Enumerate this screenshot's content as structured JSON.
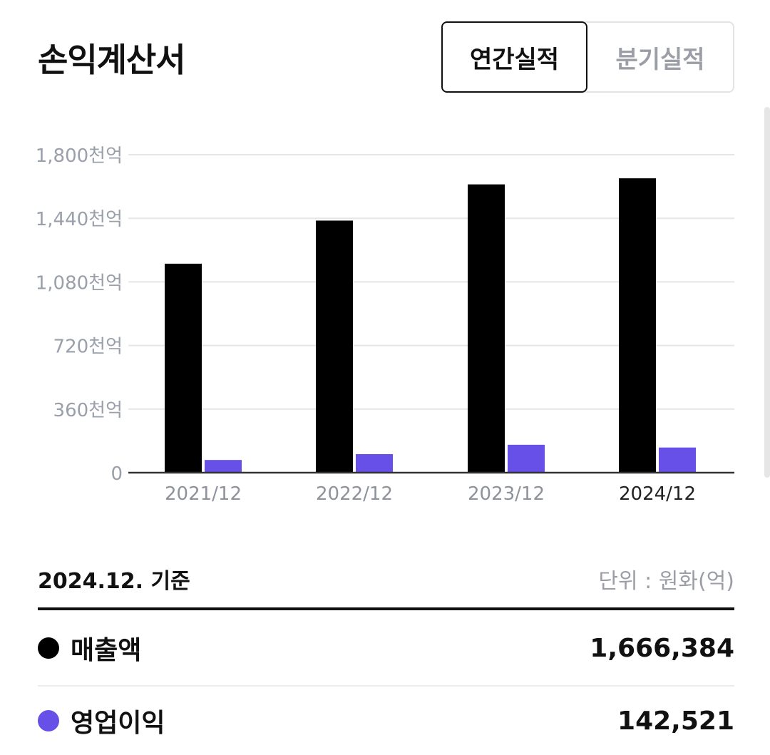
{
  "header": {
    "title": "손익계산서",
    "toggle": {
      "annual": "연간실적",
      "quarterly": "분기실적",
      "active": "annual"
    }
  },
  "chart_data": {
    "type": "bar",
    "categories": [
      "2021/12",
      "2022/12",
      "2023/12",
      "2024/12"
    ],
    "highlight_category": "2024/12",
    "series": [
      {
        "name": "매출액",
        "color": "#000000",
        "values": [
          1183000,
          1427000,
          1632000,
          1666384
        ]
      },
      {
        "name": "영업이익",
        "color": "#6650e8",
        "values": [
          72000,
          105000,
          158000,
          142521
        ]
      }
    ],
    "ylim": [
      0,
      1800000
    ],
    "yticks": [
      0,
      360000,
      720000,
      1080000,
      1440000,
      1800000
    ],
    "ytick_labels": [
      "0",
      "360천억",
      "720천억",
      "1,080천억",
      "1,440천억",
      "1,800천억"
    ],
    "grid": true,
    "xlabel": "",
    "ylabel": ""
  },
  "summary": {
    "as_of": "2024.12. 기준",
    "unit": "단위 : 원화(억)",
    "rows": [
      {
        "label": "매출액",
        "value": "1,666,384",
        "color": "#000000"
      },
      {
        "label": "영업이익",
        "value": "142,521",
        "color": "#6650e8"
      }
    ]
  }
}
